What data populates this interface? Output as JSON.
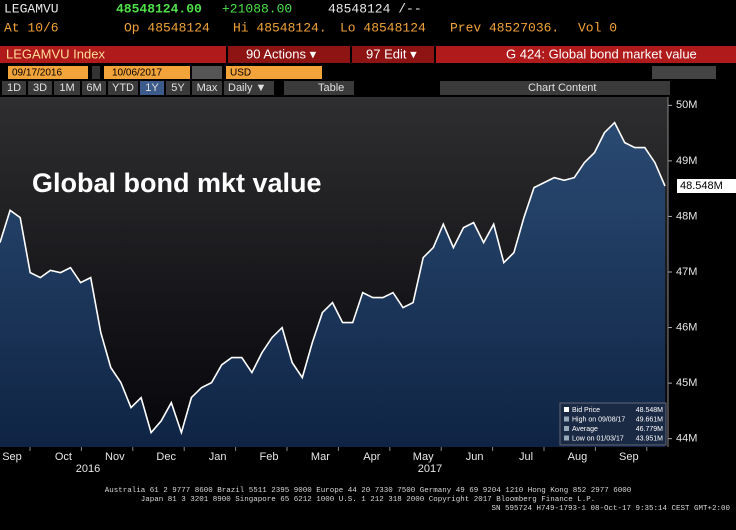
{
  "header": {
    "ticker": "LEGAMVU",
    "last": "48548124.00",
    "change": "+21088.00",
    "bidask": "48548124 /--",
    "at": "At 10/6",
    "open": "Op 48548124",
    "high": "Hi 48548124.",
    "low": "Lo 48548124",
    "prev": "Prev 48527036.",
    "volume": "Vol 0"
  },
  "toolbar": {
    "security": "LEGAMVU Index",
    "actions": "90 Actions ▾",
    "edit": "97 Edit ▾",
    "page": "G 424: Global bond market value",
    "start_date": "09/17/2016",
    "end_date": "10/06/2017",
    "currency": "USD",
    "periods": [
      "1D",
      "3D",
      "1M",
      "6M",
      "YTD",
      "1Y",
      "5Y",
      "Max"
    ],
    "frequency": "Daily ▼",
    "table": "Table",
    "chart_content": "Chart Content"
  },
  "chart_data": {
    "type": "area",
    "title": "Global bond mkt value",
    "color": "#ffffff",
    "fill": "#1f3d63",
    "values": [
      47.53,
      48.11,
      47.98,
      46.99,
      46.9,
      47.03,
      46.99,
      47.08,
      46.81,
      46.9,
      45.91,
      45.28,
      45.01,
      44.56,
      44.74,
      44.11,
      44.32,
      44.65,
      44.11,
      44.74,
      44.92,
      45.01,
      45.33,
      45.46,
      45.46,
      45.19,
      45.55,
      45.82,
      46.0,
      45.37,
      45.1,
      45.73,
      46.27,
      46.45,
      46.09,
      46.09,
      46.63,
      46.54,
      46.54,
      46.63,
      46.36,
      46.45,
      47.26,
      47.44,
      47.86,
      47.44,
      47.8,
      47.89,
      47.53,
      47.86,
      47.17,
      47.35,
      47.98,
      48.52,
      48.61,
      48.7,
      48.65,
      48.7,
      48.97,
      49.15,
      49.51,
      49.69,
      49.33,
      49.24,
      49.24,
      48.97,
      48.548
    ],
    "last_label": "48.548M",
    "months": [
      "Sep",
      "Oct",
      "Nov",
      "Dec",
      "Jan",
      "Feb",
      "Mar",
      "Apr",
      "May",
      "Jun",
      "Jul",
      "Aug",
      "Sep"
    ],
    "years": [
      "2016",
      "2017"
    ],
    "ylim": [
      43.85,
      50.15
    ],
    "yticks": [
      {
        "value": 44,
        "label": "44M"
      },
      {
        "value": 45,
        "label": "45M"
      },
      {
        "value": 46,
        "label": "46M"
      },
      {
        "value": 47,
        "label": "47M"
      },
      {
        "value": 48,
        "label": "48M"
      },
      {
        "value": 49,
        "label": "49M"
      },
      {
        "value": 50,
        "label": "50M"
      }
    ],
    "legend": [
      {
        "label": "Bid Price",
        "value": "48.548M"
      },
      {
        "label": "High on 09/08/17",
        "value": "49.661M"
      },
      {
        "label": "Average",
        "value": "46.779M"
      },
      {
        "label": "Low on 01/03/17",
        "value": "43.951M"
      }
    ]
  },
  "footer": [
    "Australia 61 2 9777 8600 Brazil 5511 2395 9000 Europe 44 20 7330 7500 Germany 49 69 9204 1210 Hong Kong 852 2977 6000",
    "Japan 81 3 3201 8900        Singapore 65 6212 1000       U.S. 1 212 318 2000          Copyright 2017 Bloomberg Finance L.P.",
    "SN 595724 H749-1793-1 08-Oct-17  9:35:14 CEST GMT+2:00"
  ]
}
